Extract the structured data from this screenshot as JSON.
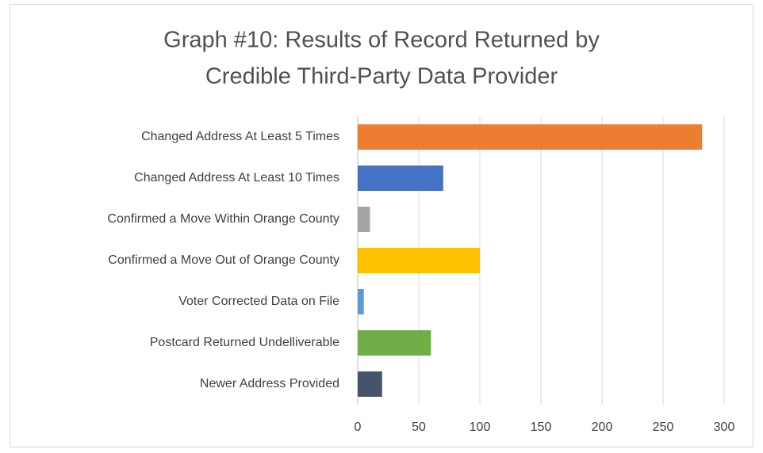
{
  "chart_data": {
    "type": "bar",
    "orientation": "horizontal",
    "title": [
      "Graph #10: Results of Record Returned by",
      "Credible Third-Party Data Provider"
    ],
    "categories": [
      "Changed Address At Least 5 Times",
      "Changed Address At Least 10 Times",
      "Confirmed a Move Within Orange County",
      "Confirmed a Move Out of Orange County",
      "Voter Corrected Data on File",
      "Postcard Returned Undelliverable",
      "Newer Address Provided"
    ],
    "values": [
      282,
      70,
      10,
      100,
      5,
      60,
      20
    ],
    "colors": [
      "#ed7d31",
      "#4472c4",
      "#a5a5a5",
      "#ffc000",
      "#5b9bd5",
      "#70ad47",
      "#44546a"
    ],
    "xlim": [
      0,
      300
    ],
    "xticks": [
      0,
      50,
      100,
      150,
      200,
      250,
      300
    ],
    "grid": true
  }
}
